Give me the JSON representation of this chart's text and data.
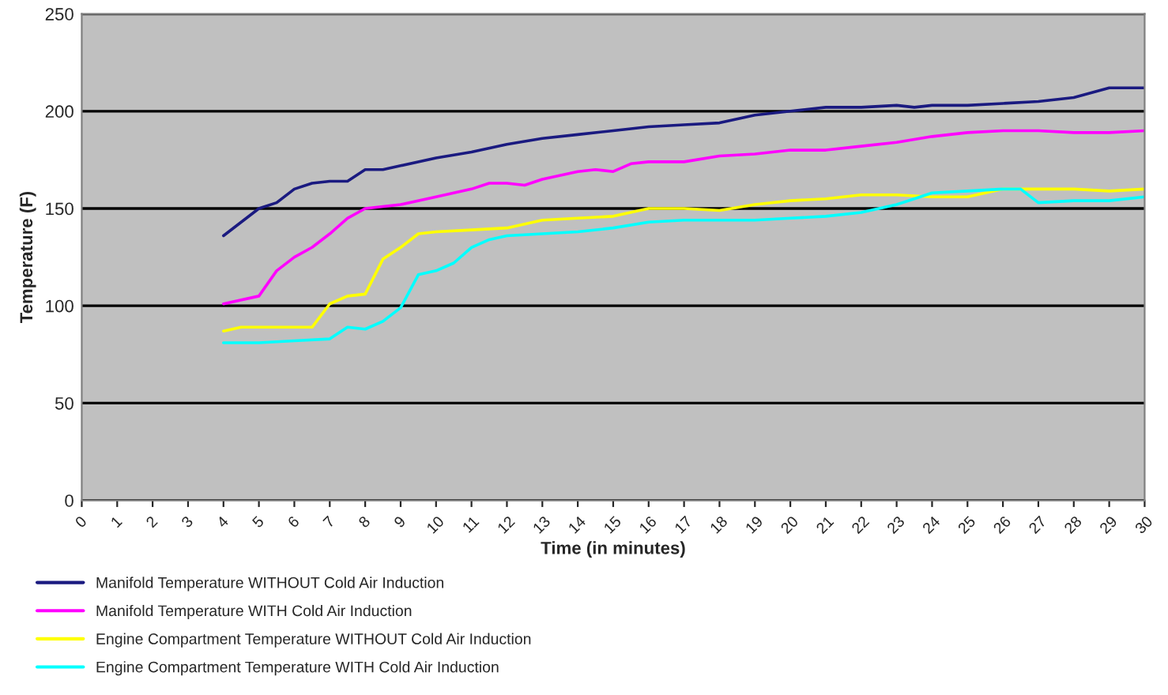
{
  "chart_data": {
    "type": "line",
    "xlabel": "Time (in minutes)",
    "ylabel": "Temperature (F)",
    "xlim": [
      0,
      30
    ],
    "xticks": [
      0,
      1,
      2,
      3,
      4,
      5,
      6,
      7,
      8,
      9,
      10,
      11,
      12,
      13,
      14,
      15,
      16,
      17,
      18,
      19,
      20,
      21,
      22,
      23,
      24,
      25,
      26,
      27,
      28,
      29,
      30
    ],
    "ylim": [
      0,
      250
    ],
    "yticks": [
      0,
      50,
      100,
      150,
      200,
      250
    ],
    "grid": "y",
    "legend": "bottom",
    "marker": "none",
    "line_style": "solid",
    "series": [
      {
        "name": "Manifold Temperature WITHOUT Cold Air Induction",
        "color": "#1a1a80",
        "x": [
          4,
          4.5,
          5,
          5.5,
          6,
          6.5,
          7,
          7.5,
          8,
          8.5,
          9,
          10,
          11,
          12,
          13,
          14,
          15,
          16,
          17,
          18,
          19,
          20,
          21,
          22,
          23,
          23.5,
          24,
          25,
          26,
          27,
          28,
          29,
          30
        ],
        "values": [
          136,
          143,
          150,
          153,
          160,
          163,
          164,
          164,
          170,
          170,
          172,
          176,
          179,
          183,
          186,
          188,
          190,
          192,
          193,
          194,
          198,
          200,
          202,
          202,
          203,
          202,
          203,
          203,
          204,
          205,
          207,
          212,
          212
        ]
      },
      {
        "name": "Manifold Temperature WITH Cold Air Induction",
        "color": "#ff00ff",
        "x": [
          4,
          5,
          5.5,
          6,
          6.5,
          7,
          7.5,
          8,
          9,
          10,
          11,
          11.5,
          12,
          12.5,
          13,
          14,
          14.5,
          15,
          15.5,
          16,
          17,
          18,
          19,
          20,
          21,
          22,
          23,
          24,
          25,
          26,
          27,
          28,
          29,
          30
        ],
        "values": [
          101,
          105,
          118,
          125,
          130,
          137,
          145,
          150,
          152,
          156,
          160,
          163,
          163,
          162,
          165,
          169,
          170,
          169,
          173,
          174,
          174,
          177,
          178,
          180,
          180,
          182,
          184,
          187,
          189,
          190,
          190,
          189,
          189,
          190
        ]
      },
      {
        "name": "Engine Compartment Temperature WITHOUT Cold Air Induction",
        "color": "#ffff00",
        "x": [
          4,
          4.5,
          5,
          6,
          6.5,
          7,
          7.5,
          8,
          8.5,
          9,
          9.5,
          10,
          11,
          12,
          13,
          14,
          15,
          16,
          17,
          18,
          19,
          20,
          21,
          22,
          23,
          24,
          25,
          26,
          27,
          28,
          29,
          30
        ],
        "values": [
          87,
          89,
          89,
          89,
          89,
          101,
          105,
          106,
          124,
          130,
          137,
          138,
          139,
          140,
          144,
          145,
          146,
          150,
          150,
          149,
          152,
          154,
          155,
          157,
          157,
          156,
          156,
          160,
          160,
          160,
          159,
          160
        ]
      },
      {
        "name": "Engine Compartment Temperature WITH Cold Air Induction",
        "color": "#00ffff",
        "x": [
          4,
          5,
          6,
          7,
          7.5,
          8,
          8.5,
          9,
          9.5,
          10,
          10.5,
          11,
          11.5,
          12,
          13,
          14,
          15,
          16,
          17,
          18,
          19,
          20,
          21,
          22,
          23,
          24,
          25,
          26,
          26.5,
          27,
          28,
          29,
          30
        ],
        "values": [
          81,
          81,
          82,
          83,
          89,
          88,
          92,
          99,
          116,
          118,
          122,
          130,
          134,
          136,
          137,
          138,
          140,
          143,
          144,
          144,
          144,
          145,
          146,
          148,
          152,
          158,
          159,
          160,
          160,
          153,
          154,
          154,
          156
        ]
      }
    ]
  }
}
